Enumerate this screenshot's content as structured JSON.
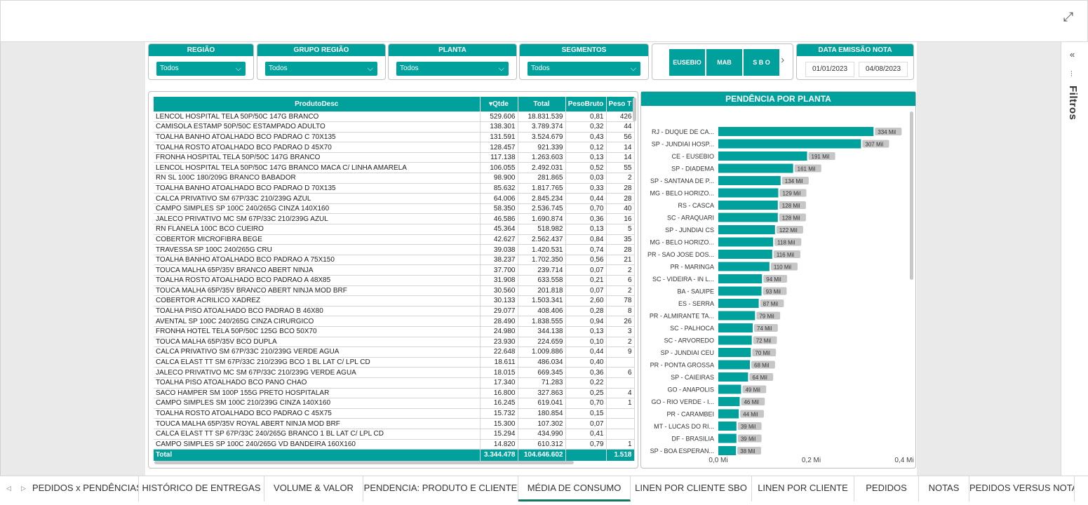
{
  "window": {
    "expand_icon": "expand-icon"
  },
  "slicers": [
    {
      "title": "REGIÃO",
      "value": "Todos"
    },
    {
      "title": "GRUPO REGIÃO",
      "value": "Todos"
    },
    {
      "title": "PLANTA",
      "value": "Todos"
    },
    {
      "title": "SEGMENTOS",
      "value": "Todos"
    }
  ],
  "plant_buttons": [
    "EUSEBIO",
    "MAB",
    "S B O"
  ],
  "date_filter": {
    "title": "DATA EMISSÃO NOTA",
    "start": "01/01/2023",
    "end": "04/08/2023"
  },
  "filters_pane": {
    "label": "Filtros"
  },
  "table": {
    "columns": [
      "ProdutoDesc",
      "Qtde",
      "Total",
      "PesoBruto",
      "Peso T"
    ],
    "rows": [
      [
        "LENCOL HOSPITAL TELA 50P/50C 147G BRANCO",
        "529.606",
        "18.831.539",
        "0,81",
        "426"
      ],
      [
        "CAMISOLA ESTAMP 50P/50C ESTAMPADO ADULTO",
        "138.301",
        "3.789.374",
        "0,32",
        "44"
      ],
      [
        "TOALHA BANHO ATOALHADO BCO PADRAO C 70X135",
        "131.591",
        "3.524.679",
        "0,43",
        "56"
      ],
      [
        "TOALHA ROSTO ATOALHADO BCO PADRAO D 45X70",
        "128.457",
        "921.339",
        "0,12",
        "14"
      ],
      [
        "FRONHA HOSPITAL TELA 50P/50C 147G BRANCO",
        "117.138",
        "1.263.603",
        "0,13",
        "14"
      ],
      [
        "LENCOL HOSPITAL TELA 50P/50C 147G BRANCO MACA C/ LINHA AMARELA",
        "106.055",
        "2.492.031",
        "0,52",
        "55"
      ],
      [
        "RN SL 100C 180/209G BRANCO BABADOR",
        "98.900",
        "281.865",
        "0,03",
        "2"
      ],
      [
        "TOALHA BANHO ATOALHADO BCO PADRAO D 70X135",
        "85.632",
        "1.817.765",
        "0,33",
        "28"
      ],
      [
        "CALCA PRIVATIVO SM 67P/33C 210/239G AZUL",
        "64.006",
        "2.845.234",
        "0,44",
        "28"
      ],
      [
        "CAMPO SIMPLES SP 100C 240/265G CINZA 140X160",
        "58.350",
        "2.536.745",
        "0,70",
        "40"
      ],
      [
        "JALECO PRIVATIVO MC SM 67P/33C 210/239G AZUL",
        "46.586",
        "1.690.874",
        "0,36",
        "16"
      ],
      [
        "RN FLANELA 100C BCO CUEIRO",
        "45.364",
        "518.982",
        "0,13",
        "5"
      ],
      [
        "COBERTOR MICROFIBRA BEGE",
        "42.627",
        "2.562.437",
        "0,84",
        "35"
      ],
      [
        "TRAVESSA SP 100C 240/265G CRU",
        "39.038",
        "1.420.531",
        "0,74",
        "28"
      ],
      [
        "TOALHA BANHO ATOALHADO BCO PADRAO A 75X150",
        "38.237",
        "1.702.350",
        "0,56",
        "21"
      ],
      [
        "TOUCA MALHA 65P/35V BRANCO ABERT NINJA",
        "37.700",
        "239.714",
        "0,07",
        "2"
      ],
      [
        "TOALHA ROSTO ATOALHADO BCO PADRAO A 48X85",
        "31.908",
        "633.558",
        "0,21",
        "6"
      ],
      [
        "TOUCA MALHA 65P/35V BRANCO ABERT NINJA MOD BRF",
        "30.560",
        "201.818",
        "0,07",
        "2"
      ],
      [
        "COBERTOR ACRILICO XADREZ",
        "30.133",
        "1.503.341",
        "2,60",
        "78"
      ],
      [
        "TOALHA PISO ATOALHADO BCO PADRAO B 46X80",
        "29.077",
        "408.406",
        "0,28",
        "8"
      ],
      [
        "AVENTAL SP 100C 240/265G CINZA CIRURGICO",
        "28.490",
        "1.838.555",
        "0,94",
        "26"
      ],
      [
        "FRONHA HOTEL TELA 50P/50C 125G BCO 50X70",
        "24.980",
        "344.138",
        "0,13",
        "3"
      ],
      [
        "TOUCA MALHA 65P/35V BCO DUPLA",
        "23.930",
        "224.659",
        "0,10",
        "2"
      ],
      [
        "CALCA PRIVATIVO SM 67P/33C 210/239G VERDE AGUA",
        "22.648",
        "1.009.886",
        "0,44",
        "9"
      ],
      [
        "CALCA ELAST TT SM 67P/33C 210/239G BCO 1 BL LAT C/ LPL CD",
        "18.611",
        "486.034",
        "0,40",
        ""
      ],
      [
        "JALECO PRIVATIVO MC SM 67P/33C 210/239G VERDE AGUA",
        "18.015",
        "669.345",
        "0,36",
        "6"
      ],
      [
        "TOALHA PISO ATOALHADO BCO PANO CHAO",
        "17.340",
        "71.283",
        "0,22",
        ""
      ],
      [
        "SACO HAMPER SM 100P 155G PRETO HOSPITALAR",
        "16.800",
        "327.863",
        "0,25",
        "4"
      ],
      [
        "CAMPO SIMPLES SM 100C 210/239G CINZA 140X160",
        "16.245",
        "619.041",
        "0,70",
        "1"
      ],
      [
        "TOALHA ROSTO ATOALHADO BCO PADRAO C 45X75",
        "15.732",
        "180.854",
        "0,15",
        ""
      ],
      [
        "TOUCA MALHA 65P/35V ROYAL ABERT NINJA MOD BRF",
        "15.300",
        "107.302",
        "0,07",
        ""
      ],
      [
        "CALCA ELAST TT SP 67P/33C 240/265G BRANCO 1 BL LAT C/ LPL CD",
        "15.294",
        "434.990",
        "0,41",
        ""
      ],
      [
        "CAMPO SIMPLES SP 100C 240/265G VD BANDEIRA 160X160",
        "14.820",
        "610.312",
        "0,79",
        "1"
      ]
    ],
    "total": {
      "label": "Total",
      "qtde": "3.344.478",
      "total": "104.646.602",
      "peso_bruto": "",
      "peso_t": "1.518"
    }
  },
  "chart_data": {
    "type": "bar",
    "orientation": "horizontal",
    "title": "PENDÊNCIA POR PLANTA",
    "categories": [
      "RJ - DUQUE DE CA...",
      "SP - JUNDIAI HOSP...",
      "CE - EUSEBIO",
      "SP - DIADEMA",
      "SP - SANTANA DE P...",
      "MG - BELO HORIZO...",
      "RS - CASCA",
      "SC - ARAQUARI",
      "SP - JUNDIAI CS",
      "MG - BELO HORIZO...",
      "PR - SAO JOSE DOS...",
      "PR - MARINGA",
      "SC - VIDEIRA - IN L...",
      "BA - SAUIPE",
      "ES - SERRA",
      "PR - ALMIRANTE TA...",
      "SC - PALHOCA",
      "SC - ARVOREDO",
      "SP - JUNDIAI CEU",
      "PR - PONTA GROSSA",
      "SP - CAIEIRAS",
      "GO - ANAPOLIS",
      "GO - RIO VERDE - I...",
      "PR - CARAMBEI",
      "MT - LUCAS DO RI...",
      "DF - BRASILIA",
      "SP - BOA ESPERAN..."
    ],
    "values": [
      334000,
      307000,
      191000,
      161000,
      134000,
      129000,
      128000,
      128000,
      122000,
      118000,
      116000,
      110000,
      94000,
      93000,
      87000,
      79000,
      74000,
      72000,
      70000,
      68000,
      64000,
      49000,
      46000,
      44000,
      39000,
      39000,
      38000
    ],
    "labels": [
      "334 Mil",
      "307 Mil",
      "191 Mil",
      "161 Mil",
      "134 Mil",
      "129 Mil",
      "128 Mil",
      "128 Mil",
      "122 Mil",
      "118 Mil",
      "116 Mil",
      "110 Mil",
      "94 Mil",
      "93 Mil",
      "87 Mil",
      "79 Mil",
      "74 Mil",
      "72 Mil",
      "70 Mil",
      "68 Mil",
      "64 Mil",
      "49 Mil",
      "46 Mil",
      "44 Mil",
      "39 Mil",
      "39 Mil",
      "38 Mil"
    ],
    "xlim": [
      0,
      400000
    ],
    "xticks": [
      0,
      200000,
      400000
    ],
    "xtick_labels": [
      "0,0 Mi",
      "0,2 Mi",
      "0,4 Mi"
    ],
    "color": "#00a19c",
    "grid": false
  },
  "tabs": [
    {
      "label": "PEDIDOS x PENDÊNCIAS",
      "active": false
    },
    {
      "label": "HISTÓRICO DE ENTREGAS",
      "active": false
    },
    {
      "label": "VOLUME & VALOR",
      "active": false
    },
    {
      "label": "PENDENCIA: PRODUTO E CLIENTE",
      "active": false
    },
    {
      "label": "MÉDIA DE CONSUMO",
      "active": true
    },
    {
      "label": "LINEN POR CLIENTE SBO",
      "active": false
    },
    {
      "label": "LINEN POR CLIENTE",
      "active": false
    },
    {
      "label": "PEDIDOS",
      "active": false
    },
    {
      "label": "NOTAS",
      "active": false
    },
    {
      "label": "PEDIDOS VERSUS NOTA",
      "active": false
    }
  ],
  "tab_nav": {
    "prev": "◁",
    "next": "▷"
  },
  "colors": {
    "accent": "#00a19c",
    "active_tab_underline": "#117865"
  }
}
